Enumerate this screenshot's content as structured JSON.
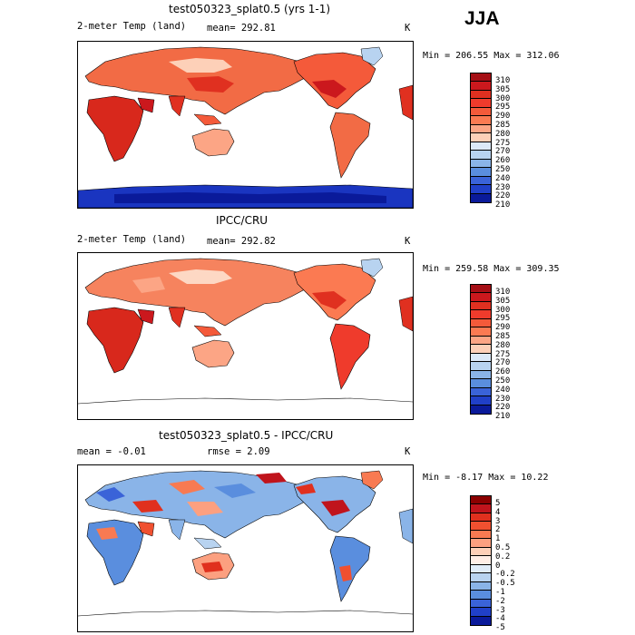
{
  "season": "JJA",
  "panels": [
    {
      "title": "test050323_splat0.5 (yrs 1-1)",
      "left_label": "2-meter Temp (land)",
      "mean_label": "mean= 292.81",
      "units": "K",
      "minmax": "Min = 206.55 Max = 312.06",
      "legend_levels": [
        "310",
        "305",
        "300",
        "295",
        "290",
        "285",
        "280",
        "275",
        "270",
        "260",
        "250",
        "240",
        "230",
        "220",
        "210"
      ],
      "legend_colors": [
        "#a50f15",
        "#cb181d",
        "#e03020",
        "#ef3b2c",
        "#f45a3a",
        "#fb7a52",
        "#fca585",
        "#fdd0b8",
        "#dce9f8",
        "#b8d3f0",
        "#8ab4e8",
        "#5a8ede",
        "#3a63d8",
        "#2040c8",
        "#0a1a9a"
      ]
    },
    {
      "title": "IPCC/CRU",
      "left_label": "2-meter Temp (land)",
      "mean_label": "mean= 292.82",
      "units": "K",
      "minmax": "Min = 259.58 Max = 309.35",
      "legend_levels": [
        "310",
        "305",
        "300",
        "295",
        "290",
        "285",
        "280",
        "275",
        "270",
        "260",
        "250",
        "240",
        "230",
        "220",
        "210"
      ],
      "legend_colors": [
        "#a50f15",
        "#cb181d",
        "#e03020",
        "#ef3b2c",
        "#f45a3a",
        "#fb7a52",
        "#fca585",
        "#fdd0b8",
        "#dce9f8",
        "#b8d3f0",
        "#8ab4e8",
        "#5a8ede",
        "#3a63d8",
        "#2040c8",
        "#0a1a9a"
      ]
    },
    {
      "title": "test050323_splat0.5 - IPCC/CRU",
      "left_label": "mean =  -0.01",
      "mean_label": "rmse =   2.09",
      "units": "K",
      "minmax": "Min =  -8.17 Max =  10.22",
      "legend_levels": [
        "5",
        "4",
        "3",
        "2",
        "1",
        "0.5",
        "0.2",
        "0",
        "-0.2",
        "-0.5",
        "-1",
        "-2",
        "-3",
        "-4",
        "-5"
      ],
      "legend_colors": [
        "#8b0000",
        "#c0141c",
        "#e0301e",
        "#f05030",
        "#f87a52",
        "#fca080",
        "#fdd0b8",
        "#ffeee6",
        "#e0ecf8",
        "#b8d3f0",
        "#8ab4e8",
        "#5a8ede",
        "#3a63d8",
        "#2040c8",
        "#0a1a9a"
      ]
    }
  ]
}
